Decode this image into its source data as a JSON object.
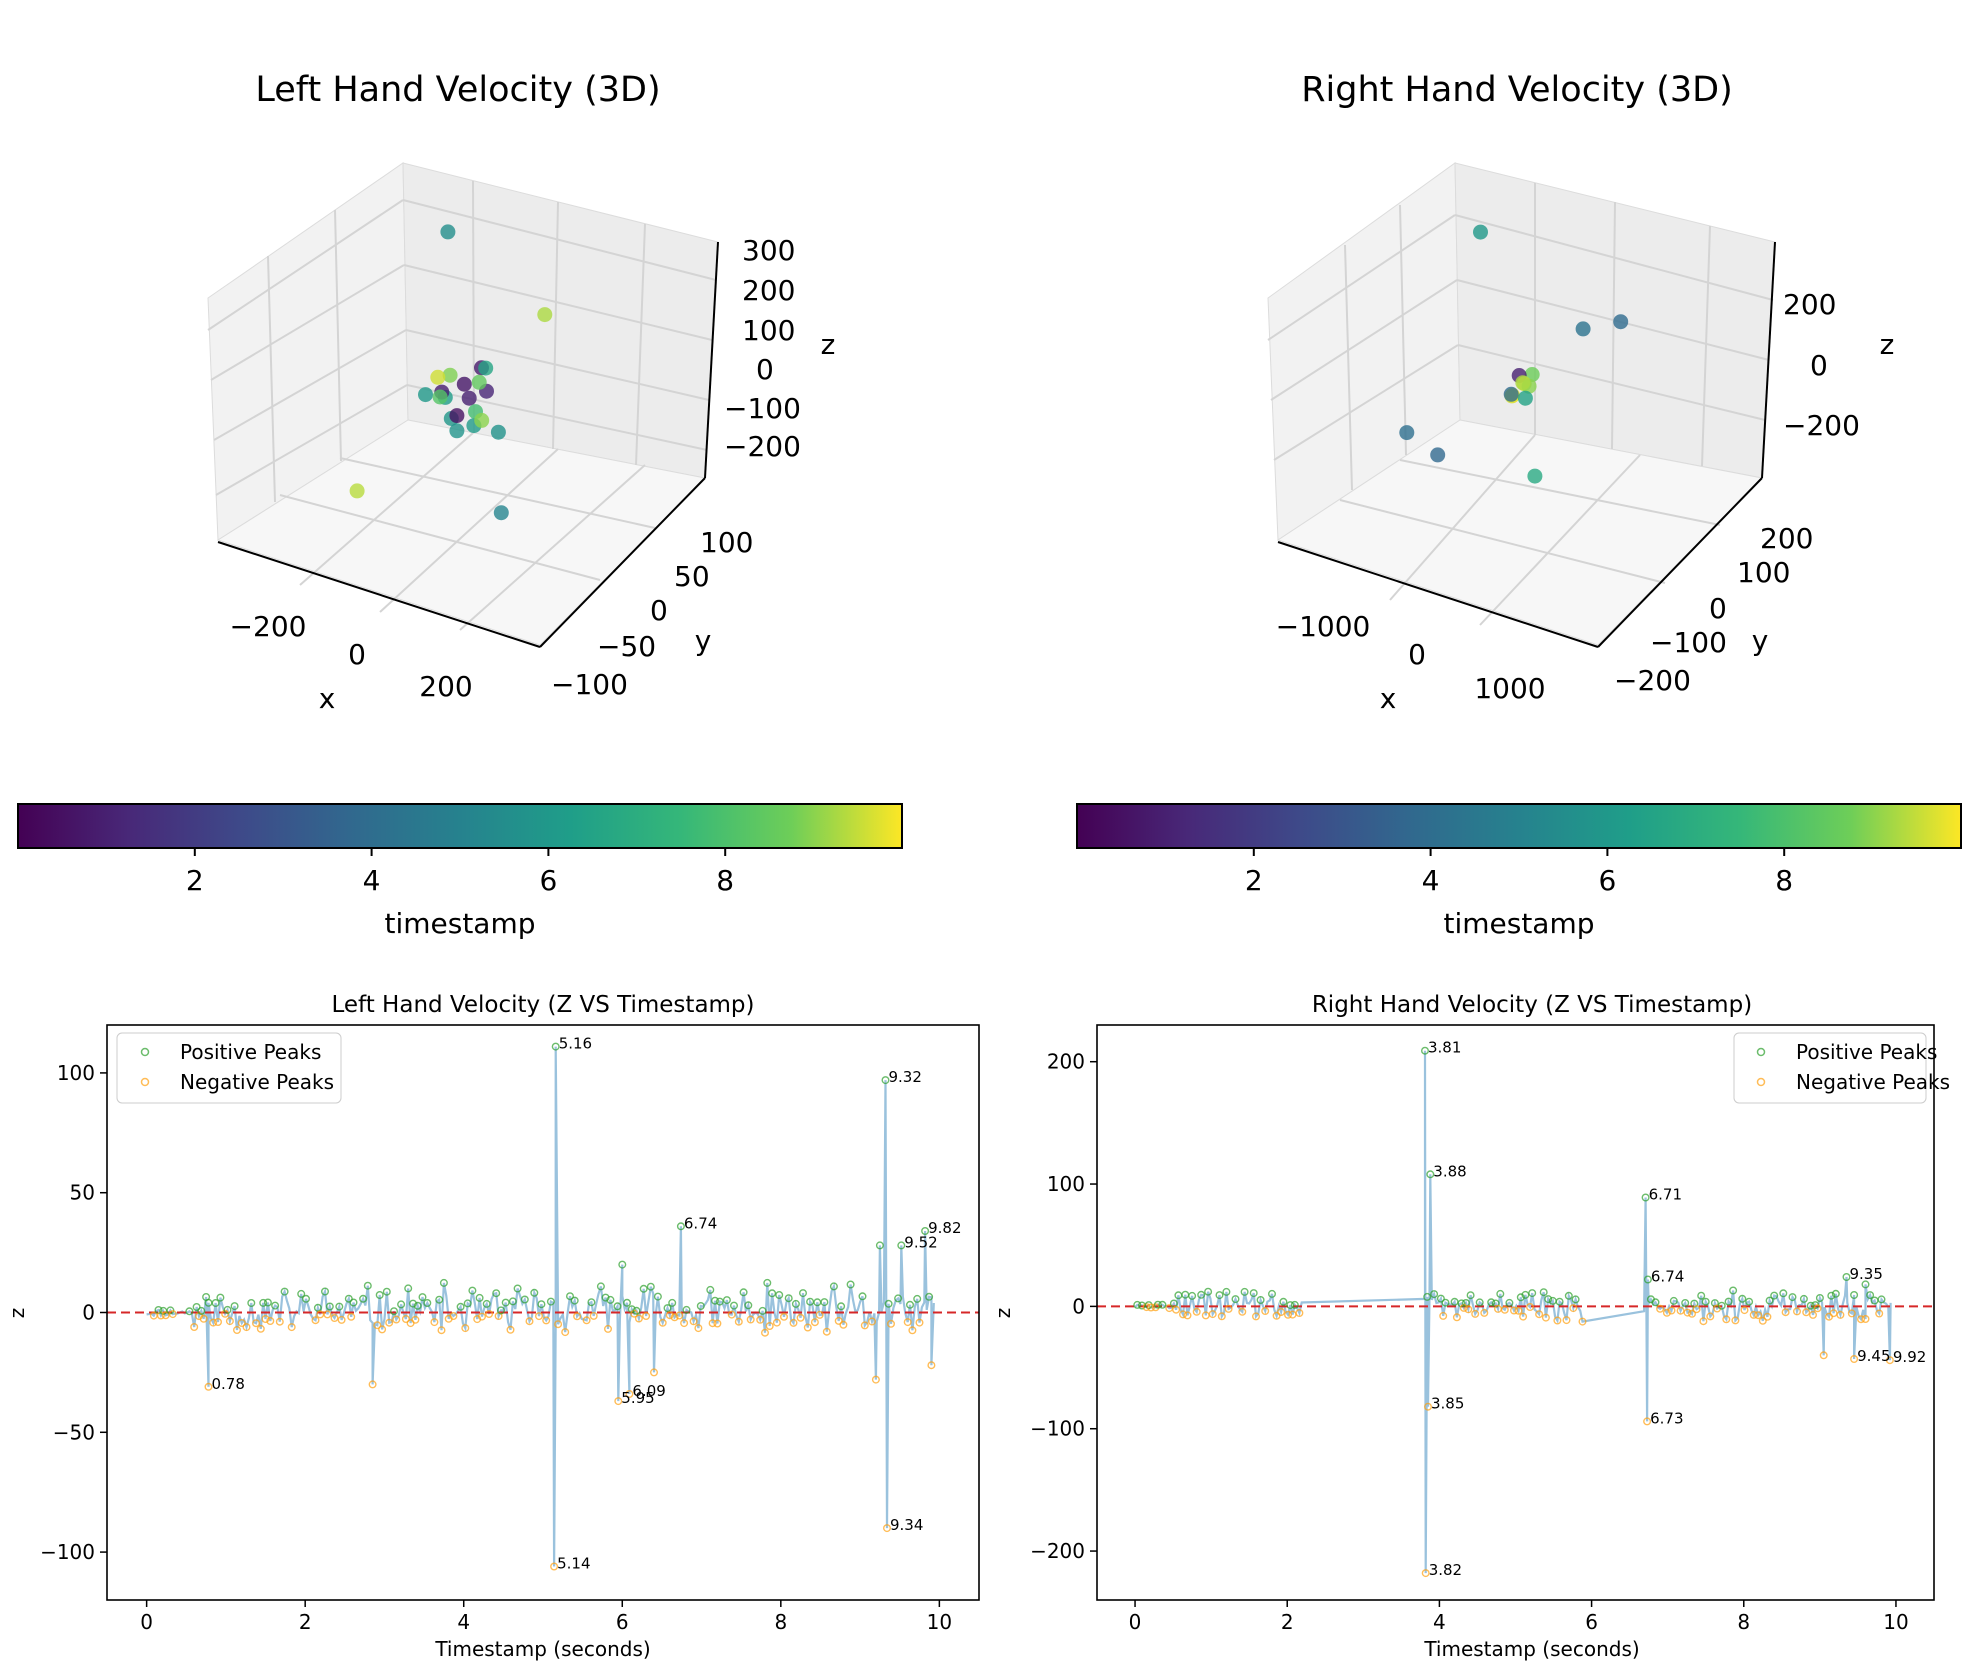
{
  "chart_data": [
    {
      "type": "scatter3d",
      "title": "Left Hand Velocity (3D)",
      "xlabel": "x",
      "ylabel": "y",
      "zlabel": "z",
      "xticks": [
        "−200",
        "0",
        "200"
      ],
      "yticks": [
        "100",
        "50",
        "0",
        "−50",
        "−100"
      ],
      "zticks": [
        "300",
        "200",
        "100",
        "0",
        "−100",
        "−200"
      ],
      "xlim": [
        -300,
        300
      ],
      "ylim": [
        -120,
        130
      ],
      "zlim": [
        -260,
        310
      ],
      "points": [
        {
          "x": -40,
          "y": 20,
          "z": 330,
          "t": 5.6
        },
        {
          "x": 200,
          "y": -10,
          "z": 230,
          "t": 9.3
        },
        {
          "x": -250,
          "y": 30,
          "z": -300,
          "t": 9.4
        },
        {
          "x": 260,
          "y": -110,
          "z": -90,
          "t": 5.1
        },
        {
          "x": -10,
          "y": 0,
          "z": 40,
          "t": 8.9
        },
        {
          "x": 20,
          "y": 5,
          "z": -10,
          "t": 1.0
        },
        {
          "x": -15,
          "y": -8,
          "z": 10,
          "t": 0.9
        },
        {
          "x": 30,
          "y": 12,
          "z": 20,
          "t": 8.5
        },
        {
          "x": -30,
          "y": 6,
          "z": -20,
          "t": 6.2
        },
        {
          "x": 10,
          "y": -5,
          "z": -40,
          "t": 0.5
        },
        {
          "x": 40,
          "y": 0,
          "z": -30,
          "t": 7.8
        },
        {
          "x": -5,
          "y": 15,
          "z": 5,
          "t": 0.7
        },
        {
          "x": 25,
          "y": -15,
          "z": -60,
          "t": 5.8
        },
        {
          "x": -25,
          "y": 10,
          "z": -70,
          "t": 5.9
        },
        {
          "x": 50,
          "y": 8,
          "z": 60,
          "t": 6.6
        },
        {
          "x": -45,
          "y": -10,
          "z": 0,
          "t": 6.0
        },
        {
          "x": 5,
          "y": 20,
          "z": -90,
          "t": 6.1
        },
        {
          "x": 60,
          "y": -5,
          "z": -40,
          "t": 9.0
        },
        {
          "x": -35,
          "y": 0,
          "z": 30,
          "t": 9.6
        },
        {
          "x": 15,
          "y": 25,
          "z": 35,
          "t": 0.8
        },
        {
          "x": 70,
          "y": 10,
          "z": -80,
          "t": 5.7
        },
        {
          "x": 0,
          "y": -20,
          "z": 15,
          "t": 8.2
        },
        {
          "x": 35,
          "y": 18,
          "z": -5,
          "t": 1.2
        }
      ],
      "colorbar": {
        "label": "timestamp",
        "ticks": [
          "2",
          "4",
          "6",
          "8"
        ],
        "range": [
          0,
          10
        ]
      }
    },
    {
      "type": "scatter3d",
      "title": "Right Hand Velocity (3D)",
      "xlabel": "x",
      "ylabel": "y",
      "zlabel": "z",
      "xticks": [
        "−1000",
        "0",
        "1000"
      ],
      "yticks": [
        "200",
        "100",
        "0",
        "−100",
        "−200"
      ],
      "zticks": [
        "200",
        "0",
        "−200"
      ],
      "xlim": [
        -1350,
        1350
      ],
      "ylim": [
        -240,
        260
      ],
      "zlim": [
        -330,
        340
      ],
      "points": [
        {
          "x": -1100,
          "y": 250,
          "z": 180,
          "t": 6.0
        },
        {
          "x": 1300,
          "y": -100,
          "z": 300,
          "t": 3.9
        },
        {
          "x": 300,
          "y": 100,
          "z": 100,
          "t": 4.3
        },
        {
          "x": -200,
          "y": -150,
          "z": -100,
          "t": 3.8
        },
        {
          "x": 900,
          "y": -220,
          "z": -50,
          "t": 6.8
        },
        {
          "x": -1300,
          "y": 100,
          "z": -260,
          "t": 4.1
        },
        {
          "x": 60,
          "y": 10,
          "z": 0,
          "t": 9.5
        },
        {
          "x": 80,
          "y": 0,
          "z": 10,
          "t": 9.3
        },
        {
          "x": 20,
          "y": -10,
          "z": -20,
          "t": 9.8
        },
        {
          "x": 100,
          "y": 20,
          "z": 20,
          "t": 8.7
        },
        {
          "x": 40,
          "y": -20,
          "z": -10,
          "t": 3.9
        },
        {
          "x": 120,
          "y": 5,
          "z": 0,
          "t": 9.0
        },
        {
          "x": 0,
          "y": 15,
          "z": 15,
          "t": 1.0
        },
        {
          "x": 200,
          "y": -30,
          "z": -5,
          "t": 6.5
        },
        {
          "x": -20,
          "y": 0,
          "z": -30,
          "t": 9.6
        }
      ],
      "colorbar": {
        "label": "timestamp",
        "ticks": [
          "2",
          "4",
          "6",
          "8"
        ],
        "range": [
          0,
          10
        ]
      }
    },
    {
      "type": "line",
      "title": "Left Hand Velocity (Z VS Timestamp)",
      "xlabel": "Timestamp (seconds)",
      "ylabel": "z",
      "xlim": [
        -0.5,
        10.5
      ],
      "ylim": [
        -120,
        120
      ],
      "xticks": [
        0,
        2,
        4,
        6,
        8,
        10
      ],
      "yticks": [
        100,
        50,
        0,
        -50,
        -100
      ],
      "ytick_labels": [
        "100",
        "50",
        "0",
        "−50",
        "−100"
      ],
      "legend": {
        "position": "top-left",
        "entries": [
          "Positive Peaks",
          "Negative Peaks"
        ]
      },
      "noise": {
        "start": 0,
        "end": 9.95,
        "dense_start": 0.6,
        "amp_pos": 13,
        "amp_neg": 10,
        "seed": 11
      },
      "spikes": [
        {
          "t": 5.16,
          "v": 111,
          "label": "5.16"
        },
        {
          "t": 5.14,
          "v": -106,
          "label": "5.14"
        },
        {
          "t": 9.32,
          "v": 97,
          "label": "9.32"
        },
        {
          "t": 9.34,
          "v": -90,
          "label": "9.34"
        },
        {
          "t": 6.74,
          "v": 36,
          "label": "6.74"
        },
        {
          "t": 9.82,
          "v": 34,
          "label": "9.82"
        },
        {
          "t": 9.52,
          "v": 28,
          "label": "9.52"
        },
        {
          "t": 0.78,
          "v": -31,
          "label": "0.78"
        },
        {
          "t": 5.95,
          "v": -37,
          "label": "5.95"
        },
        {
          "t": 6.09,
          "v": -34,
          "label": "6.09"
        },
        {
          "t": 9.25,
          "v": 28,
          "label": ""
        },
        {
          "t": 9.2,
          "v": -28,
          "label": ""
        },
        {
          "t": 9.9,
          "v": -22,
          "label": ""
        },
        {
          "t": 2.85,
          "v": -30,
          "label": ""
        },
        {
          "t": 6.0,
          "v": 20,
          "label": ""
        },
        {
          "t": 6.4,
          "v": -25,
          "label": ""
        }
      ]
    },
    {
      "type": "line",
      "title": "Right Hand Velocity (Z VS Timestamp)",
      "xlabel": "Timestamp (seconds)",
      "ylabel": "z",
      "xlim": [
        -0.5,
        10.5
      ],
      "ylim": [
        -240,
        230
      ],
      "xticks": [
        0,
        2,
        4,
        6,
        8,
        10
      ],
      "yticks": [
        200,
        100,
        0,
        -100,
        -200
      ],
      "ytick_labels": [
        "200",
        "100",
        "0",
        "−100",
        "−200"
      ],
      "legend": {
        "position": "top-right",
        "entries": [
          "Positive Peaks",
          "Negative Peaks"
        ]
      },
      "noise": {
        "start": 0,
        "end": 9.95,
        "dense_start": 0.5,
        "amp_pos": 14,
        "amp_neg": 14,
        "seed": 29,
        "gaps": [
          [
            2.2,
            3.78
          ],
          [
            5.9,
            6.68
          ]
        ]
      },
      "spikes": [
        {
          "t": 3.81,
          "v": 209,
          "label": "3.81"
        },
        {
          "t": 3.82,
          "v": -218,
          "label": "3.82"
        },
        {
          "t": 3.88,
          "v": 108,
          "label": "3.88"
        },
        {
          "t": 3.85,
          "v": -82,
          "label": "3.85"
        },
        {
          "t": 6.71,
          "v": 89,
          "label": "6.71"
        },
        {
          "t": 6.73,
          "v": -94,
          "label": "6.73"
        },
        {
          "t": 6.74,
          "v": 22,
          "label": "6.74"
        },
        {
          "t": 9.35,
          "v": 24,
          "label": "9.35"
        },
        {
          "t": 9.45,
          "v": -43,
          "label": "9.45"
        },
        {
          "t": 9.92,
          "v": -44,
          "label": "9.92"
        },
        {
          "t": 9.05,
          "v": -40,
          "label": ""
        },
        {
          "t": 9.6,
          "v": 18,
          "label": ""
        }
      ]
    }
  ]
}
